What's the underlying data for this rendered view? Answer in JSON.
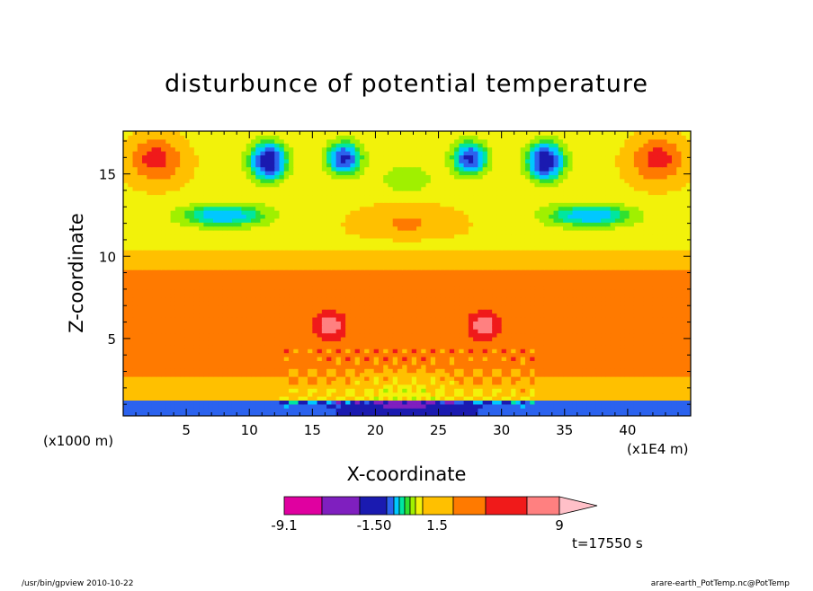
{
  "chart_data": {
    "type": "heatmap",
    "title": "disturbunce of potential temperature",
    "xlabel": "X-coordinate",
    "ylabel": "Z-coordinate",
    "x_unit": "(x1E4 m)",
    "y_unit": "(x1000 m)",
    "xlim": [
      0,
      45
    ],
    "ylim": [
      0.3,
      17.6
    ],
    "xticks": [
      5,
      10,
      15,
      20,
      25,
      30,
      35,
      40
    ],
    "yticks": [
      5,
      10,
      15
    ],
    "colorbar": {
      "tick_labels": [
        "-9.1",
        "-1.50",
        "1.5",
        "9"
      ],
      "tick_values": [
        -9.1,
        -1.5,
        1.5,
        9
      ],
      "colors": [
        "#e000a0",
        "#7f1fbf",
        "#1a1ab0",
        "#2b62ee",
        "#00c8ff",
        "#00e6a0",
        "#30e030",
        "#a0f000",
        "#f2f20a",
        "#ffc000",
        "#ff7a00",
        "#f01a1a",
        "#ff8080",
        "#ffc0c8"
      ]
    },
    "regions": [
      {
        "zmin": 0.3,
        "zmax": 0.9,
        "colors": "bands",
        "value_hint": "mixed"
      },
      {
        "zmin": 3.5,
        "zmax": 8.5,
        "value_hint": "warm"
      },
      {
        "zmin": 12.0,
        "zmax": 13.5,
        "value_hint": "cool"
      }
    ],
    "time_label": "t=17550 s"
  },
  "footer": {
    "left": "/usr/bin/gpview   2010-10-22",
    "right": "arare-earth_PotTemp.nc@PotTemp"
  },
  "colors": {
    "line": "#000000",
    "background": "#ffffff"
  }
}
